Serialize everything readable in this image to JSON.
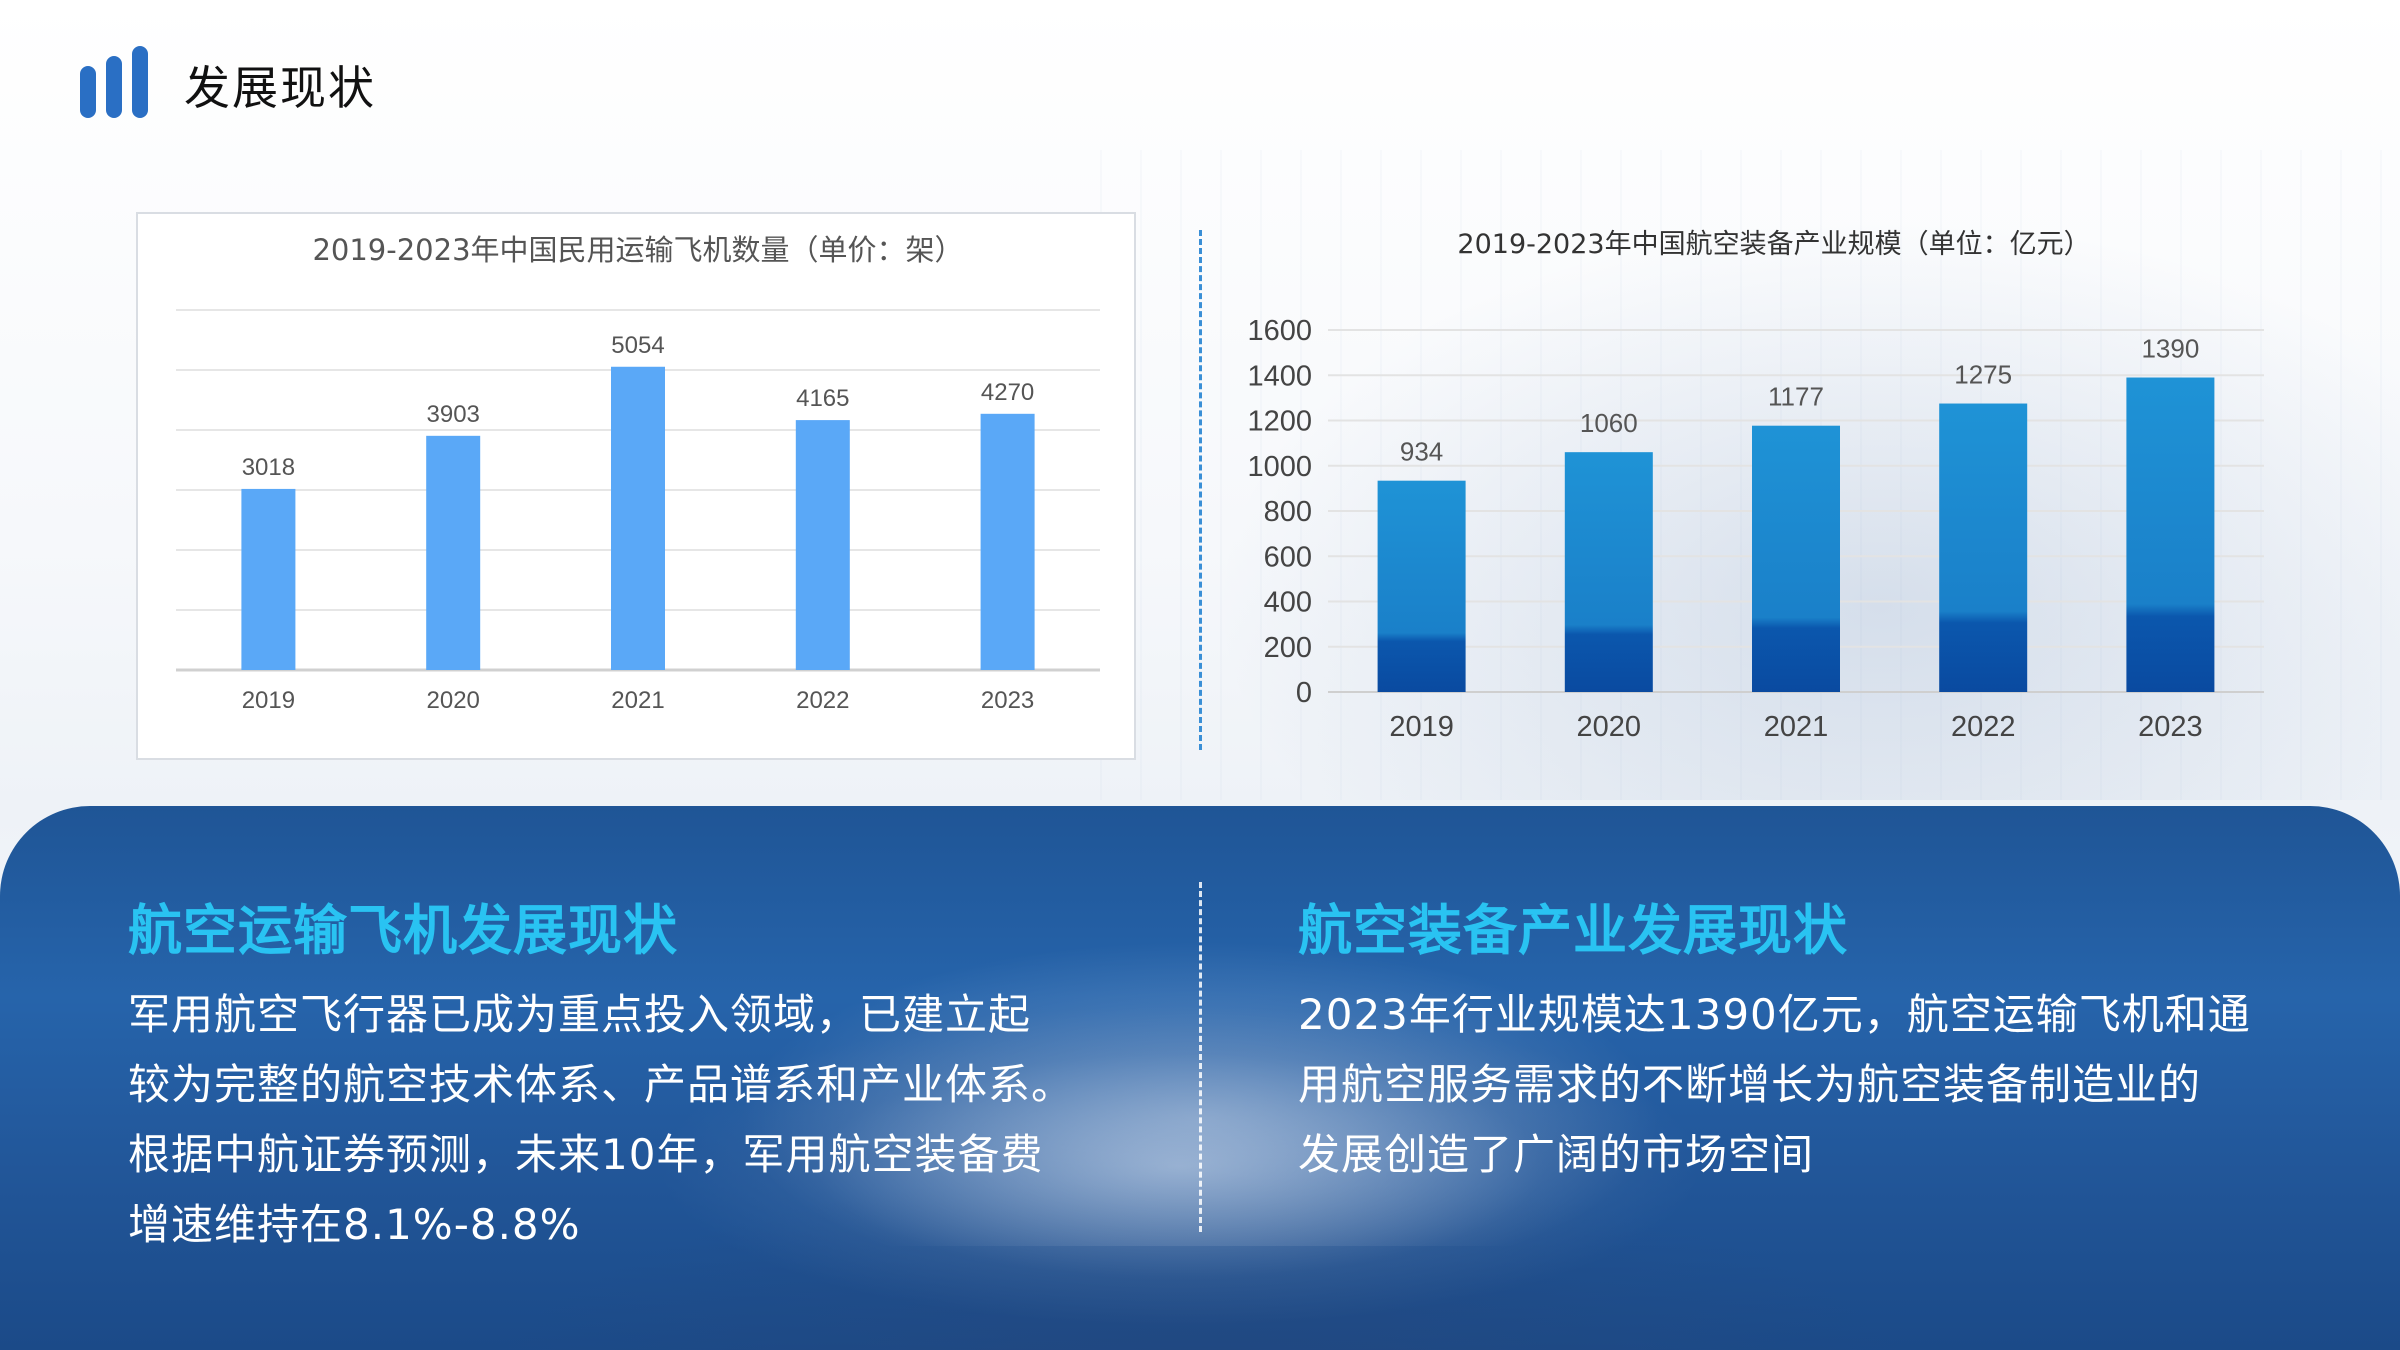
{
  "page": {
    "title": "发展现状",
    "accent_color": "#2a6fc4"
  },
  "chart_data": [
    {
      "type": "bar",
      "title": "2019-2023年中国民用运输飞机数量（单价：架）",
      "categories": [
        "2019",
        "2020",
        "2021",
        "2022",
        "2023"
      ],
      "values": [
        3018,
        3903,
        5054,
        4165,
        4270
      ],
      "ylim": [
        0,
        6000
      ],
      "grid": true,
      "y_tick_labels_shown": false,
      "bar_color": "#5aa8f7"
    },
    {
      "type": "bar",
      "title": "2019-2023年中国航空装备产业规模（单位：亿元）",
      "categories": [
        "2019",
        "2020",
        "2021",
        "2022",
        "2023"
      ],
      "values": [
        934,
        1060,
        1177,
        1275,
        1390
      ],
      "ylim": [
        0,
        1600
      ],
      "y_ticks": [
        0,
        200,
        400,
        600,
        800,
        1000,
        1200,
        1400,
        1600
      ],
      "grid": true,
      "bar_color_top": "#1f93d6",
      "bar_color_bottom": "#0a4fa8"
    }
  ],
  "sections": {
    "left": {
      "heading": "航空运输飞机发展现状",
      "lines": [
        "军用航空飞行器已成为重点投入领域，已建立起",
        "较为完整的航空技术体系、产品谱系和产业体系。",
        "根据中航证券预测，未来10年，军用航空装备费",
        "增速维持在8.1%-8.8%"
      ]
    },
    "right": {
      "heading": "航空装备产业发展现状",
      "lines": [
        "2023年行业规模达1390亿元，航空运输飞机和通",
        "用航空服务需求的不断增长为航空装备制造业的",
        "发展创造了广阔的市场空间"
      ]
    },
    "heading_color": "#29c3f2"
  }
}
